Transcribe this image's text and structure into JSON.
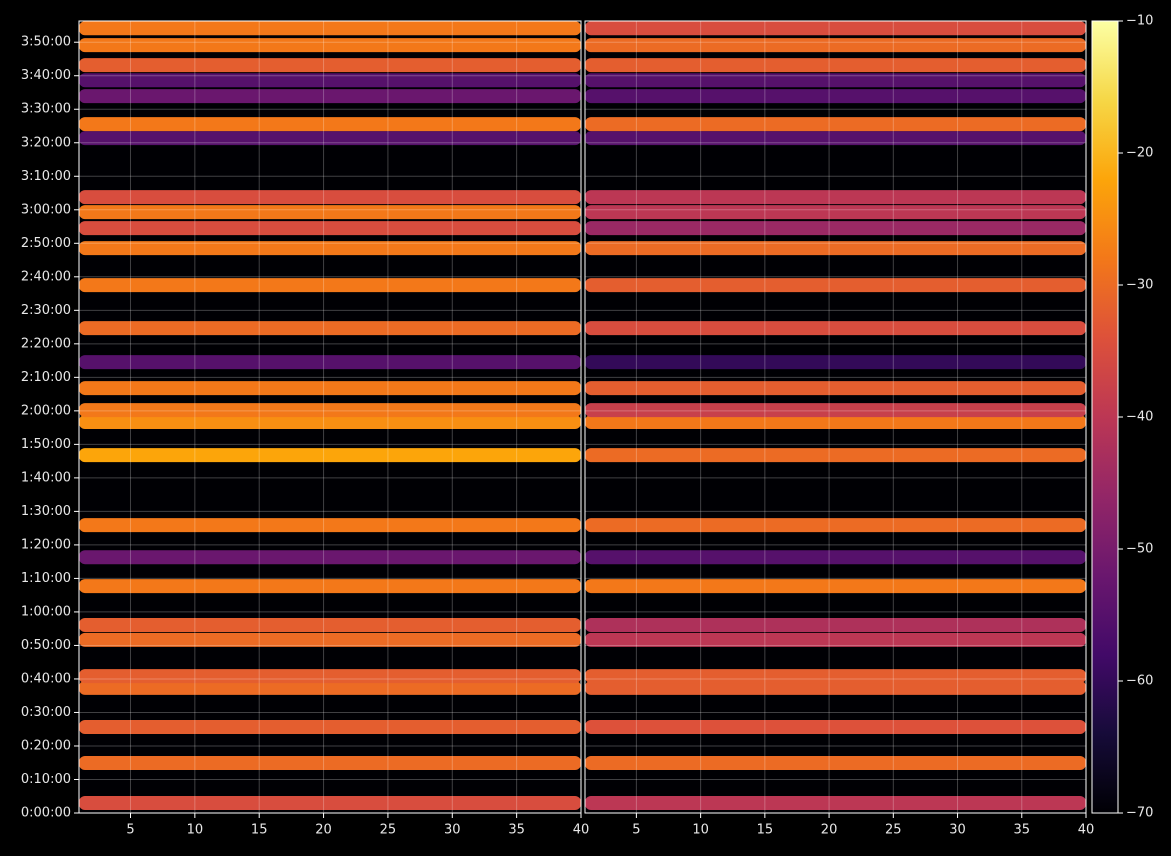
{
  "chart_data": {
    "type": "heatmap",
    "colormap": "inferno",
    "grid": true,
    "xlim": [
      1,
      40
    ],
    "xticks": [
      5,
      10,
      15,
      20,
      25,
      30,
      35,
      40
    ],
    "ylim": [
      0,
      14180
    ],
    "yticks": [
      {
        "value": 0,
        "label": "0:00:00"
      },
      {
        "value": 600,
        "label": "0:10:00"
      },
      {
        "value": 1200,
        "label": "0:20:00"
      },
      {
        "value": 1800,
        "label": "0:30:00"
      },
      {
        "value": 2400,
        "label": "0:40:00"
      },
      {
        "value": 3000,
        "label": "0:50:00"
      },
      {
        "value": 3600,
        "label": "1:00:00"
      },
      {
        "value": 4200,
        "label": "1:10:00"
      },
      {
        "value": 4800,
        "label": "1:20:00"
      },
      {
        "value": 5400,
        "label": "1:30:00"
      },
      {
        "value": 6000,
        "label": "1:40:00"
      },
      {
        "value": 6600,
        "label": "1:50:00"
      },
      {
        "value": 7200,
        "label": "2:00:00"
      },
      {
        "value": 7800,
        "label": "2:10:00"
      },
      {
        "value": 8400,
        "label": "2:20:00"
      },
      {
        "value": 9000,
        "label": "2:30:00"
      },
      {
        "value": 9600,
        "label": "2:40:00"
      },
      {
        "value": 10200,
        "label": "2:50:00"
      },
      {
        "value": 10800,
        "label": "3:00:00"
      },
      {
        "value": 11400,
        "label": "3:10:00"
      },
      {
        "value": 12000,
        "label": "3:20:00"
      },
      {
        "value": 12600,
        "label": "3:30:00"
      },
      {
        "value": 13200,
        "label": "3:40:00"
      },
      {
        "value": 13800,
        "label": "3:50:00"
      }
    ],
    "times": [
      180,
      895,
      1540,
      2240,
      2450,
      3100,
      3365,
      4063,
      4580,
      5155,
      6408,
      7000,
      7214,
      7608,
      8073,
      8682,
      9451,
      10114,
      10472,
      10758,
      11026,
      12082,
      12333,
      12835,
      13120,
      13389,
      13747,
      14051
    ],
    "panels": [
      {
        "values": [
          -35,
          -30,
          -32,
          -30,
          -32,
          -30,
          -32,
          -28,
          -52,
          -28,
          -22,
          -25,
          -28,
          -28,
          -55,
          -30,
          -28,
          -28,
          -35,
          -28,
          -35,
          -55,
          -28,
          -52,
          -55,
          -32,
          -28,
          -28
        ]
      },
      {
        "values": [
          -40,
          -30,
          -34,
          -32,
          -32,
          -40,
          -42,
          -28,
          -55,
          -30,
          -30,
          -28,
          -38,
          -32,
          -60,
          -35,
          -32,
          -30,
          -45,
          -40,
          -40,
          -55,
          -30,
          -55,
          -55,
          -32,
          -30,
          -35
        ]
      }
    ],
    "clim": [
      -70,
      -10
    ],
    "cticks": [
      {
        "value": -70,
        "label": "−70"
      },
      {
        "value": -60,
        "label": "−60"
      },
      {
        "value": -50,
        "label": "−50"
      },
      {
        "value": -40,
        "label": "−40"
      },
      {
        "value": -30,
        "label": "−30"
      },
      {
        "value": -20,
        "label": "−20"
      },
      {
        "value": -10,
        "label": "−10"
      }
    ]
  }
}
